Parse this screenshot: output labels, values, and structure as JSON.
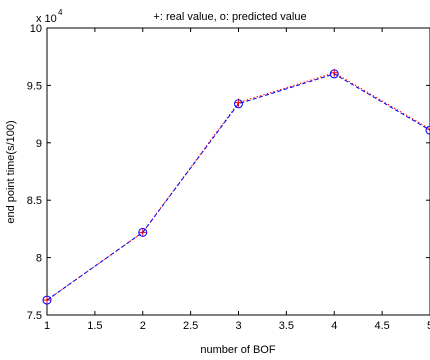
{
  "chart_data": {
    "type": "line",
    "title": "+: real value,   o: predicted value",
    "xlabel": "number of BOF",
    "ylabel": "end point time(s/100)",
    "y_multiplier": "x 10",
    "y_multiplier_exponent": "4",
    "x": [
      1,
      2,
      3,
      4,
      5
    ],
    "xlim": [
      1,
      5
    ],
    "ylim": [
      75000,
      100000
    ],
    "x_ticks": [
      1,
      1.5,
      2,
      2.5,
      3,
      3.5,
      4,
      4.5,
      5
    ],
    "x_tick_labels": [
      "1",
      "1.5",
      "2",
      "2.5",
      "3",
      "3.5",
      "4",
      "4.5",
      "5"
    ],
    "y_ticks": [
      75000,
      80000,
      85000,
      90000,
      95000,
      100000
    ],
    "y_tick_labels": [
      "7.5",
      "8",
      "8.5",
      "9",
      "9.5",
      "10"
    ],
    "grid": false,
    "series": [
      {
        "name": "real value",
        "marker": "+",
        "color": "#ff0000",
        "line_style": "dotted",
        "values": [
          76300,
          82200,
          93500,
          96100,
          91200
        ]
      },
      {
        "name": "predicted value",
        "marker": "o",
        "color": "#0000ff",
        "line_style": "dashed",
        "values": [
          76300,
          82200,
          93400,
          96000,
          91100
        ]
      }
    ]
  }
}
